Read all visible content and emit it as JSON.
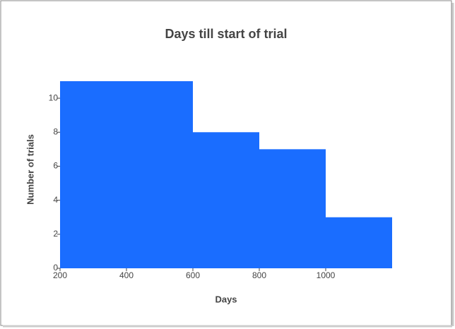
{
  "chart_data": {
    "type": "histogram",
    "title": "Days till start of trial",
    "x_label": "Days",
    "y_label": "Number of trials",
    "bins": [
      200,
      400,
      600,
      800,
      1000,
      1200
    ],
    "values": [
      11,
      11,
      8,
      7,
      3
    ],
    "color": "#1a6dff",
    "xlim": [
      200,
      1200
    ],
    "xticks": [
      200,
      400,
      600,
      800,
      1000
    ],
    "ylim": [
      0,
      11
    ],
    "yticks": [
      0,
      2,
      4,
      6,
      8,
      10
    ]
  }
}
